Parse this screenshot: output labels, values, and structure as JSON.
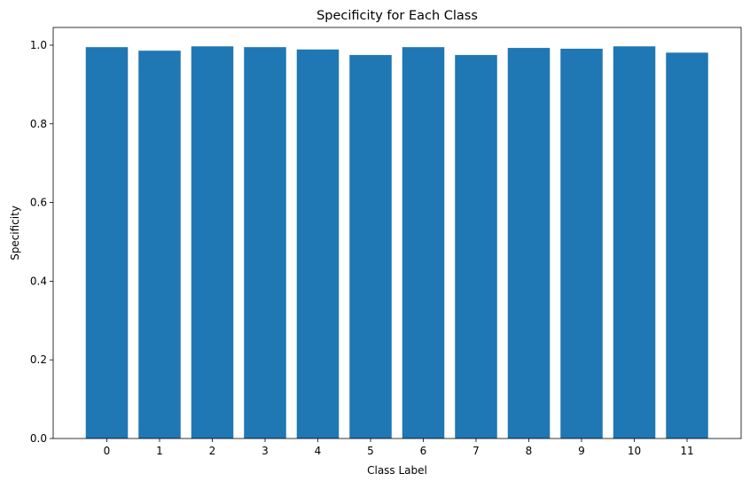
{
  "chart_data": {
    "type": "bar",
    "title": "Specificity for Each Class",
    "xlabel": "Class Label",
    "ylabel": "Specificity",
    "categories": [
      "0",
      "1",
      "2",
      "3",
      "4",
      "5",
      "6",
      "7",
      "8",
      "9",
      "10",
      "11"
    ],
    "values": [
      0.995,
      0.986,
      0.997,
      0.995,
      0.989,
      0.975,
      0.995,
      0.975,
      0.993,
      0.991,
      0.997,
      0.981
    ],
    "ylim": [
      0,
      1.045
    ],
    "yticks": [
      0.0,
      0.2,
      0.4,
      0.6,
      0.8,
      1.0
    ],
    "ytick_labels": [
      "0.0",
      "0.2",
      "0.4",
      "0.6",
      "0.8",
      "1.0"
    ],
    "grid": false,
    "legend": "none",
    "bar_color": "#1f77b4"
  }
}
